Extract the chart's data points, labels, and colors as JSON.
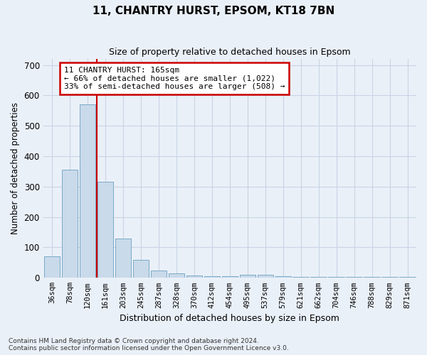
{
  "title": "11, CHANTRY HURST, EPSOM, KT18 7BN",
  "subtitle": "Size of property relative to detached houses in Epsom",
  "xlabel": "Distribution of detached houses by size in Epsom",
  "ylabel": "Number of detached properties",
  "bin_labels": [
    "36sqm",
    "78sqm",
    "120sqm",
    "161sqm",
    "203sqm",
    "245sqm",
    "287sqm",
    "328sqm",
    "370sqm",
    "412sqm",
    "454sqm",
    "495sqm",
    "537sqm",
    "579sqm",
    "621sqm",
    "662sqm",
    "704sqm",
    "746sqm",
    "788sqm",
    "829sqm",
    "871sqm"
  ],
  "bin_values": [
    70,
    355,
    570,
    315,
    130,
    60,
    25,
    15,
    8,
    5,
    5,
    10,
    10,
    5,
    3,
    2,
    2,
    2,
    2,
    2,
    2
  ],
  "bar_color": "#c9daea",
  "bar_edge_color": "#7aaac8",
  "grid_color": "#c8d4e4",
  "background_color": "#eaf0f8",
  "vline_color": "#cc0000",
  "annotation_text": "11 CHANTRY HURST: 165sqm\n← 66% of detached houses are smaller (1,022)\n33% of semi-detached houses are larger (508) →",
  "annotation_box_color": "#ffffff",
  "annotation_box_edge": "#cc0000",
  "footnote": "Contains HM Land Registry data © Crown copyright and database right 2024.\nContains public sector information licensed under the Open Government Licence v3.0.",
  "ylim": [
    0,
    720
  ],
  "yticks": [
    0,
    100,
    200,
    300,
    400,
    500,
    600,
    700
  ]
}
